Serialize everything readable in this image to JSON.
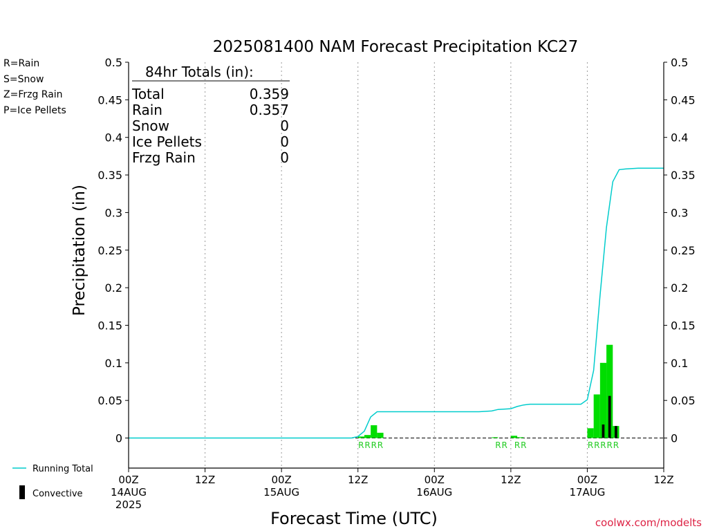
{
  "chart_data": {
    "type": "bar",
    "title": "2025081400 NAM Forecast Precipitation KC27",
    "xlabel": "Forecast Time (UTC)",
    "ylabel": "Precipitation (in)",
    "ylim": [
      -0.04,
      0.5
    ],
    "y_ticks": [
      "0",
      "0.05",
      "0.1",
      "0.15",
      "0.2",
      "0.25",
      "0.3",
      "0.35",
      "0.4",
      "0.45",
      "0.5"
    ],
    "y_tick_values": [
      0,
      0.05,
      0.1,
      0.15,
      0.2,
      0.25,
      0.3,
      0.35,
      0.4,
      0.45,
      0.5
    ],
    "x_unit": "forecast hour",
    "xlim": [
      0,
      84
    ],
    "x_ticks": [
      {
        "hour": 0,
        "lines": [
          "00Z",
          "14AUG",
          "2025"
        ]
      },
      {
        "hour": 12,
        "lines": [
          "12Z"
        ]
      },
      {
        "hour": 24,
        "lines": [
          "00Z",
          "15AUG"
        ]
      },
      {
        "hour": 36,
        "lines": [
          "12Z"
        ]
      },
      {
        "hour": 48,
        "lines": [
          "00Z",
          "16AUG"
        ]
      },
      {
        "hour": 60,
        "lines": [
          "12Z"
        ]
      },
      {
        "hour": 72,
        "lines": [
          "00Z",
          "17AUG"
        ]
      },
      {
        "hour": 84,
        "lines": [
          "12Z"
        ]
      }
    ],
    "grid_x": true,
    "legend_position": "bottom-left",
    "series": [
      {
        "name": "Rain",
        "color": "#00dd00",
        "x": [
          36.5,
          37.5,
          38.5,
          39.5,
          57.5,
          60.5,
          61.5,
          72.5,
          73.5,
          74.5,
          75.5,
          76.5
        ],
        "values": [
          0.002,
          0.004,
          0.017,
          0.007,
          0.001,
          0.003,
          0.001,
          0.013,
          0.058,
          0.1,
          0.124,
          0.016
        ]
      },
      {
        "name": "Convective",
        "color": "#000000",
        "x": [
          74.5,
          75.5,
          76.5
        ],
        "values": [
          0.018,
          0.056,
          0.016
        ]
      },
      {
        "name": "Running Total",
        "color": "#00cccc",
        "x": [
          0,
          35,
          36,
          37,
          38,
          39,
          40,
          41,
          45,
          50,
          55,
          57,
          58,
          60,
          61,
          62,
          63,
          64,
          66,
          70,
          71,
          72,
          73,
          74,
          75,
          76,
          77,
          78,
          80,
          84
        ],
        "values": [
          0,
          0,
          0.002,
          0.009,
          0.028,
          0.035,
          0.035,
          0.035,
          0.035,
          0.035,
          0.035,
          0.036,
          0.038,
          0.039,
          0.042,
          0.044,
          0.045,
          0.045,
          0.045,
          0.045,
          0.045,
          0.051,
          0.09,
          0.19,
          0.28,
          0.341,
          0.357,
          0.358,
          0.359,
          0.359
        ]
      }
    ],
    "ptype_labels": [
      {
        "hour": 36.5,
        "text": "R"
      },
      {
        "hour": 37.5,
        "text": "R"
      },
      {
        "hour": 38.5,
        "text": "R"
      },
      {
        "hour": 39.5,
        "text": "R"
      },
      {
        "hour": 58,
        "text": "R"
      },
      {
        "hour": 59,
        "text": "R"
      },
      {
        "hour": 61,
        "text": "R"
      },
      {
        "hour": 62,
        "text": "R"
      },
      {
        "hour": 72.5,
        "text": "R"
      },
      {
        "hour": 73.5,
        "text": "R"
      },
      {
        "hour": 74.5,
        "text": "R"
      },
      {
        "hour": 75.5,
        "text": "R"
      },
      {
        "hour": 76.5,
        "text": "R"
      }
    ],
    "totals": {
      "heading": "84hr Totals (in):",
      "rows": [
        {
          "label": "Total",
          "value": "0.359"
        },
        {
          "label": "Rain",
          "value": "0.357"
        },
        {
          "label": "Snow",
          "value": "0"
        },
        {
          "label": "Ice Pellets",
          "value": "0"
        },
        {
          "label": "Frzg Rain",
          "value": "0"
        }
      ]
    },
    "ptype_key": [
      {
        "text": "R=Rain",
        "color": "#22dd22"
      },
      {
        "text": "S=Snow",
        "color": "#3355ee"
      },
      {
        "text": "Z=Frzg Rain",
        "color": "#ee8833"
      },
      {
        "text": "P=Ice Pellets",
        "color": "#ee1199"
      }
    ],
    "legend": [
      {
        "label": "Running Total",
        "color": "#00cccc"
      },
      {
        "label": "Convective",
        "color": "#000000"
      }
    ],
    "credit": "coolwx.com/modelts",
    "credit_color": "#dd2244"
  }
}
